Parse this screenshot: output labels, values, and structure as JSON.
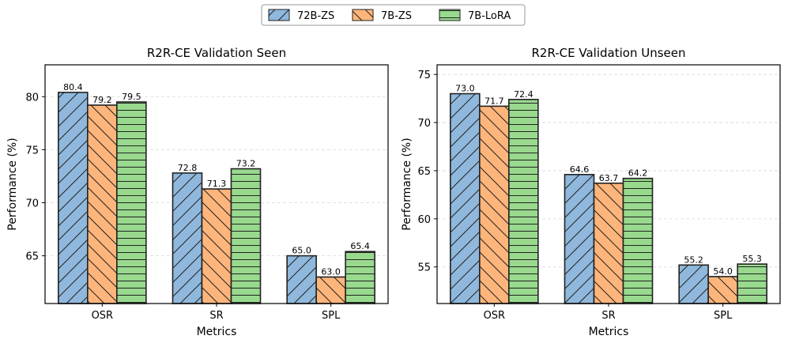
{
  "legend": {
    "items": [
      {
        "name": "72B-ZS",
        "color": "#8fb8dc",
        "hatch": "diag-right"
      },
      {
        "name": "7B-ZS",
        "color": "#fdb57b",
        "hatch": "diag-left"
      },
      {
        "name": "7B-LoRA",
        "color": "#98d98e",
        "hatch": "horizontal"
      }
    ],
    "placement": "top-center"
  },
  "chart_data": [
    {
      "type": "bar",
      "title": "R2R-CE Validation Seen",
      "xlabel": "Metrics",
      "ylabel": "Performance (%)",
      "categories": [
        "OSR",
        "SR",
        "SPL"
      ],
      "ylim": [
        60.5,
        83
      ],
      "yticks": [
        65,
        70,
        75,
        80
      ],
      "grid": "horizontal dashed",
      "series": [
        {
          "name": "72B-ZS",
          "values": [
            80.4,
            72.8,
            65.0
          ],
          "labels": [
            "80.4",
            "72.8",
            "65.0"
          ]
        },
        {
          "name": "7B-ZS",
          "values": [
            79.2,
            71.3,
            63.0
          ],
          "labels": [
            "79.2",
            "71.3",
            "63.0"
          ]
        },
        {
          "name": "7B-LoRA",
          "values": [
            79.5,
            73.2,
            65.4
          ],
          "labels": [
            "79.5",
            "73.2",
            "65.4"
          ]
        }
      ]
    },
    {
      "type": "bar",
      "title": "R2R-CE Validation Unseen",
      "xlabel": "Metrics",
      "ylabel": "Performance (%)",
      "categories": [
        "OSR",
        "SR",
        "SPL"
      ],
      "ylim": [
        51.2,
        76
      ],
      "yticks": [
        55,
        60,
        65,
        70,
        75
      ],
      "grid": "horizontal dashed",
      "series": [
        {
          "name": "72B-ZS",
          "values": [
            73.0,
            64.6,
            55.2
          ],
          "labels": [
            "73.0",
            "64.6",
            "55.2"
          ]
        },
        {
          "name": "7B-ZS",
          "values": [
            71.7,
            63.7,
            54.0
          ],
          "labels": [
            "71.7",
            "63.7",
            "54.0"
          ]
        },
        {
          "name": "7B-LoRA",
          "values": [
            72.4,
            64.2,
            55.3
          ],
          "labels": [
            "72.4",
            "64.2",
            "55.3"
          ]
        }
      ]
    }
  ]
}
